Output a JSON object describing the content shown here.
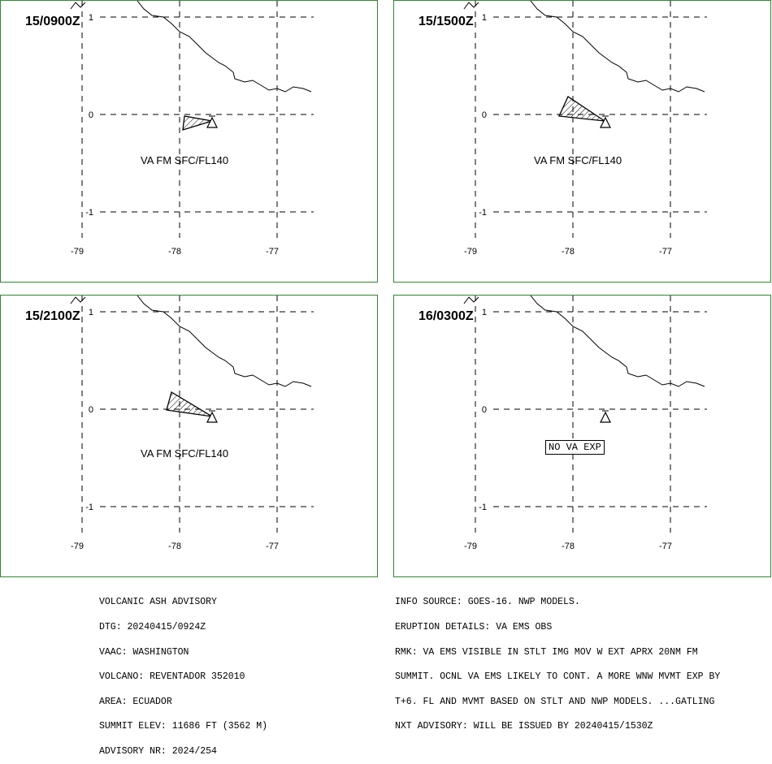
{
  "panels": [
    {
      "time": "15/0900Z",
      "label": "VA FM SFC/FL140",
      "label_box": false
    },
    {
      "time": "15/1500Z",
      "label": "VA FM SFC/FL140",
      "label_box": false
    },
    {
      "time": "15/2100Z",
      "label": "VA FM SFC/FL140",
      "label_box": false
    },
    {
      "time": "16/0300Z",
      "label": "NO VA EXP",
      "label_box": true
    }
  ],
  "axes": {
    "lon_ticks": [
      "-79",
      "-78",
      "-77"
    ],
    "lat_ticks": [
      "1",
      "0",
      "-1"
    ]
  },
  "advisory": {
    "lines": [
      "VOLCANIC ASH ADVISORY",
      "DTG: 20240415/0924Z",
      "VAAC: WASHINGTON",
      "VOLCANO: REVENTADOR 352010",
      "AREA: ECUADOR",
      "SUMMIT ELEV: 11686 FT (3562 M)",
      "ADVISORY NR: 2024/254"
    ]
  },
  "info": {
    "lines": [
      "INFO SOURCE: GOES-16. NWP MODELS.",
      "ERUPTION DETAILS: VA EMS OBS",
      "RMK: VA EMS VISIBLE IN STLT IMG MOV W EXT APRX 20NM FM",
      "SUMMIT. OCNL VA EMS LIKELY TO CONT. A MORE WNW MVMT EXP BY",
      "T+6. FL AND MVMT BASED ON STLT AND NWP MODELS. ...GATLING",
      "NXT ADVISORY: WILL BE ISSUED BY 20240415/1530Z"
    ]
  },
  "colors": {
    "frame": "#2f8a2f",
    "ink": "#000000"
  }
}
